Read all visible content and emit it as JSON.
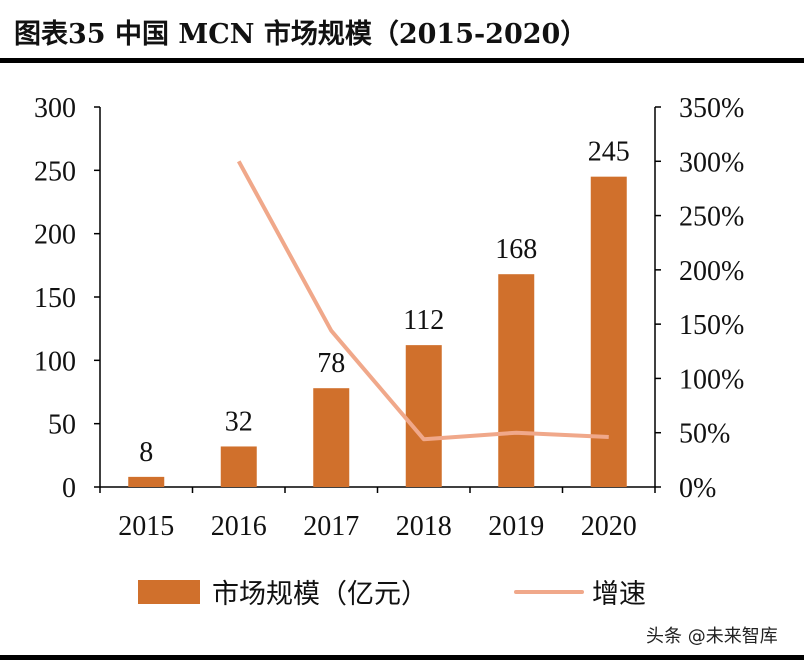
{
  "title": "图表35 中国 MCN 市场规模（2015-2020）",
  "watermark": "头条 @未来智库",
  "colors": {
    "bar": "#D0702C",
    "line": "#F0A88A"
  },
  "chart_data": {
    "type": "bar+line",
    "categories": [
      "2015",
      "2016",
      "2017",
      "2018",
      "2019",
      "2020"
    ],
    "series": [
      {
        "name": "市场规模（亿元）",
        "type": "bar",
        "axis": "left",
        "values": [
          8,
          32,
          78,
          112,
          168,
          245
        ],
        "data_labels": [
          "8",
          "32",
          "78",
          "112",
          "168",
          "245"
        ]
      },
      {
        "name": "增速",
        "type": "line",
        "axis": "right",
        "values": [
          null,
          300,
          144,
          44,
          50,
          46
        ]
      }
    ],
    "y_left": {
      "ylim": [
        0,
        300
      ],
      "ticks": [
        "0",
        "50",
        "100",
        "150",
        "200",
        "250",
        "300"
      ]
    },
    "y_right": {
      "ylim": [
        0,
        350
      ],
      "ticks": [
        "0%",
        "50%",
        "100%",
        "150%",
        "200%",
        "250%",
        "300%",
        "350%"
      ]
    },
    "grid": false,
    "legend": "bottom"
  }
}
